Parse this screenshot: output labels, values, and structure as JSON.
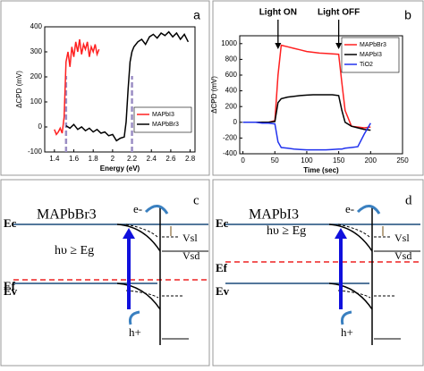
{
  "chart_data": [
    {
      "type": "line",
      "panel": "a",
      "xlabel": "Energy (eV)",
      "ylabel": "ΔCPD (mV)",
      "xlim": [
        1.3,
        2.85
      ],
      "ylim": [
        -100,
        400
      ],
      "xticks": [
        1.4,
        1.6,
        1.8,
        2,
        2.2,
        2.4,
        2.6,
        2.8
      ],
      "yticks": [
        -100,
        0,
        100,
        200,
        300,
        400
      ],
      "legend": "lower right",
      "series": [
        {
          "name": "MAPbI3",
          "color": "#ff2020",
          "x": [
            1.4,
            1.42,
            1.44,
            1.46,
            1.48,
            1.5,
            1.52,
            1.54,
            1.56,
            1.58,
            1.6,
            1.62,
            1.64,
            1.66,
            1.68,
            1.7,
            1.72,
            1.74,
            1.76,
            1.78,
            1.8,
            1.82,
            1.84,
            1.86
          ],
          "values": [
            -10,
            -30,
            -20,
            -5,
            -25,
            40,
            260,
            300,
            240,
            320,
            280,
            340,
            300,
            350,
            290,
            330,
            310,
            340,
            280,
            320,
            300,
            330,
            290,
            310
          ]
        },
        {
          "name": "MAPbBr3",
          "color": "#000000",
          "x": [
            1.52,
            1.56,
            1.6,
            1.64,
            1.68,
            1.72,
            1.76,
            1.8,
            1.84,
            1.88,
            1.92,
            1.96,
            2.0,
            2.04,
            2.08,
            2.12,
            2.14,
            2.16,
            2.18,
            2.2,
            2.22,
            2.26,
            2.3,
            2.34,
            2.38,
            2.42,
            2.46,
            2.5,
            2.54,
            2.58,
            2.62,
            2.66,
            2.7,
            2.74,
            2.78
          ],
          "values": [
            5,
            -5,
            10,
            -10,
            0,
            -15,
            -5,
            -20,
            -10,
            -25,
            -20,
            -35,
            -30,
            -55,
            -45,
            -40,
            20,
            150,
            260,
            300,
            320,
            340,
            350,
            330,
            360,
            370,
            355,
            375,
            365,
            380,
            360,
            375,
            350,
            370,
            340
          ]
        }
      ],
      "markers": [
        {
          "x": 1.52,
          "color": "#9b8ec4"
        },
        {
          "x": 2.2,
          "color": "#9b8ec4"
        }
      ]
    },
    {
      "type": "line",
      "panel": "b",
      "xlabel": "Time (sec)",
      "ylabel": "ΔCPD (mV)",
      "xlim": [
        -5,
        250
      ],
      "ylim": [
        -400,
        1100
      ],
      "xticks": [
        0,
        50,
        100,
        150,
        200,
        250
      ],
      "yticks": [
        -400,
        -200,
        0,
        200,
        400,
        600,
        800,
        1000
      ],
      "legend": "upper right",
      "x": [
        0,
        10,
        20,
        30,
        40,
        50,
        55,
        60,
        70,
        80,
        90,
        100,
        110,
        120,
        130,
        140,
        150,
        155,
        160,
        170,
        180,
        190,
        200
      ],
      "series": [
        {
          "name": "MAPbBr3",
          "color": "#ff2020",
          "values": [
            0,
            0,
            0,
            0,
            0,
            20,
            600,
            980,
            960,
            940,
            920,
            900,
            890,
            880,
            875,
            870,
            865,
            500,
            150,
            -50,
            -60,
            -70,
            -60
          ]
        },
        {
          "name": "MAPbI3",
          "color": "#000000",
          "values": [
            0,
            0,
            0,
            0,
            0,
            10,
            250,
            300,
            320,
            330,
            340,
            345,
            350,
            350,
            350,
            350,
            340,
            150,
            0,
            -50,
            -70,
            -90,
            -100
          ]
        },
        {
          "name": "TiO2",
          "color": "#2233ee",
          "values": [
            0,
            0,
            0,
            -10,
            -10,
            -20,
            -250,
            -320,
            -330,
            -340,
            -345,
            -350,
            -350,
            -350,
            -350,
            -345,
            -340,
            -340,
            -330,
            -320,
            -310,
            -150,
            -10
          ]
        }
      ],
      "annotations": [
        {
          "text": "Light ON",
          "x": 55
        },
        {
          "text": "Light OFF",
          "x": 150
        }
      ]
    }
  ],
  "diagrams": [
    {
      "panel": "c",
      "material": "MAPbBr3",
      "ec": "Ec",
      "ef": "Ef",
      "ev": "Ev",
      "excitation": "hυ ≥ Eg",
      "electron": "e-",
      "hole": "h+",
      "vs_light": "Vsl",
      "vs_dark": "Vsd"
    },
    {
      "panel": "d",
      "material": "MAPbI3",
      "ec": "Ec",
      "ef": "Ef",
      "ev": "Ev",
      "excitation": "hυ ≥ Eg",
      "electron": "e-",
      "hole": "h+",
      "vs_light": "Vsl",
      "vs_dark": "Vsd"
    }
  ]
}
